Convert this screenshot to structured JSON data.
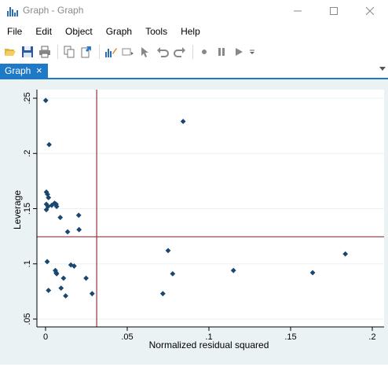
{
  "window": {
    "title": "Graph - Graph",
    "minimize_icon": "minimize-icon",
    "maximize_icon": "maximize-icon",
    "close_icon": "close-icon"
  },
  "menu": [
    "File",
    "Edit",
    "Object",
    "Graph",
    "Tools",
    "Help"
  ],
  "toolbar": {
    "icons": [
      "open-icon",
      "save-icon",
      "print-icon",
      "copy-icon",
      "export-icon",
      "graph-editor-icon",
      "rename-icon",
      "pointer-icon",
      "undo-icon",
      "redo-icon",
      "record-icon",
      "pause-icon",
      "play-icon",
      "dropdown-icon"
    ]
  },
  "tab": {
    "label": "Graph",
    "close": "×"
  },
  "chart_data": {
    "type": "scatter",
    "title": "",
    "xlabel": "Normalized residual squared",
    "ylabel": "Leverage",
    "xlim": [
      0,
      0.2
    ],
    "ylim": [
      0.05,
      0.25
    ],
    "x_ticks": [
      0,
      0.05,
      0.1,
      0.15,
      0.2
    ],
    "x_tick_labels": [
      "0",
      ".05",
      ".1",
      ".15",
      ".2"
    ],
    "y_ticks": [
      0.05,
      0.1,
      0.15,
      0.2,
      0.25
    ],
    "y_tick_labels": [
      ".05",
      ".1",
      ".15",
      ".2",
      ".25"
    ],
    "grid": true,
    "reference_lines": {
      "x": 0.0313,
      "y": 0.1245
    },
    "colors": {
      "marker": "#1a476f",
      "reference_line": "#90353b",
      "plot_bg": "#ffffff",
      "outer_bg": "#eaf2f3",
      "grid": "#eaf2f3"
    },
    "points": [
      [
        0.0001,
        0.248
      ],
      [
        0.0022,
        0.208
      ],
      [
        0.0005,
        0.165
      ],
      [
        0.0012,
        0.163
      ],
      [
        0.0018,
        0.16
      ],
      [
        0.0005,
        0.154
      ],
      [
        0.0015,
        0.152
      ],
      [
        0.0005,
        0.149
      ],
      [
        0.0038,
        0.153
      ],
      [
        0.0055,
        0.155
      ],
      [
        0.0065,
        0.154
      ],
      [
        0.0068,
        0.152
      ],
      [
        0.009,
        0.142
      ],
      [
        0.0203,
        0.144
      ],
      [
        0.0135,
        0.129
      ],
      [
        0.0205,
        0.131
      ],
      [
        0.001,
        0.102
      ],
      [
        0.006,
        0.094
      ],
      [
        0.0065,
        0.092
      ],
      [
        0.0068,
        0.091
      ],
      [
        0.0155,
        0.099
      ],
      [
        0.0175,
        0.098
      ],
      [
        0.0248,
        0.087
      ],
      [
        0.011,
        0.087
      ],
      [
        0.0095,
        0.078
      ],
      [
        0.0018,
        0.076
      ],
      [
        0.0123,
        0.071
      ],
      [
        0.0285,
        0.073
      ],
      [
        0.0842,
        0.229
      ],
      [
        0.075,
        0.112
      ],
      [
        0.0778,
        0.091
      ],
      [
        0.0718,
        0.073
      ],
      [
        0.115,
        0.094
      ],
      [
        0.1635,
        0.092
      ],
      [
        0.1835,
        0.109
      ]
    ]
  }
}
